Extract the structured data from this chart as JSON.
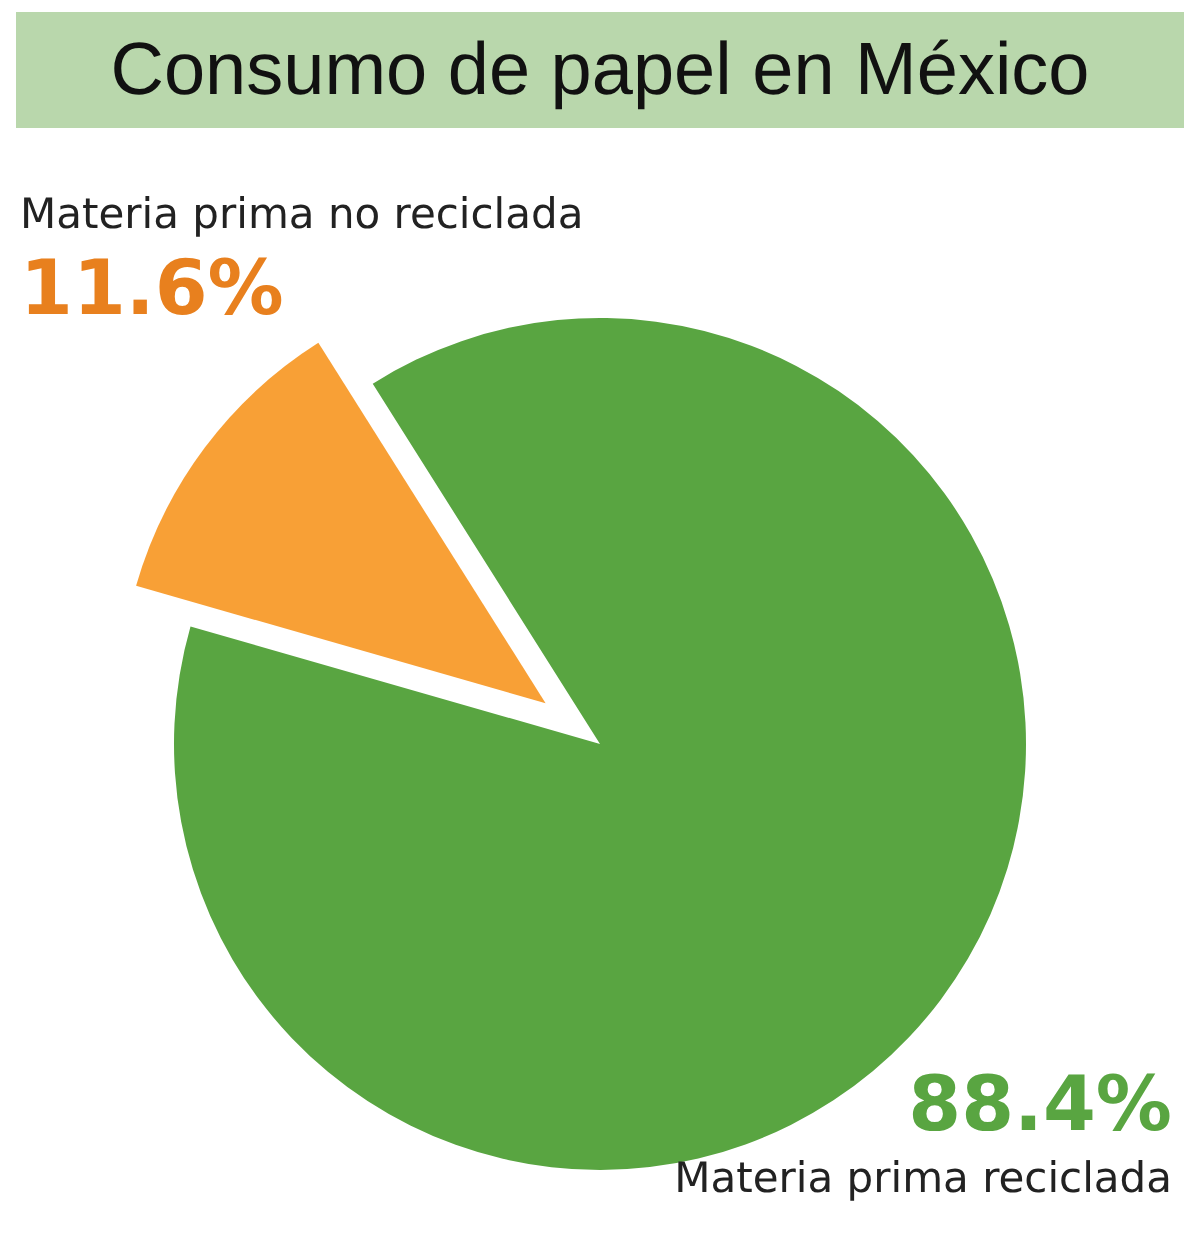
{
  "chart_data": {
    "type": "pie",
    "title": "Consumo de papel en México",
    "categories": [
      "Materia prima no reciclada",
      "Materia prima reciclada"
    ],
    "values": [
      11.6,
      88.4
    ],
    "colors": [
      "#f8a036",
      "#59a541"
    ],
    "value_labels": [
      "11.6%",
      "88.4%"
    ],
    "legend": false
  }
}
